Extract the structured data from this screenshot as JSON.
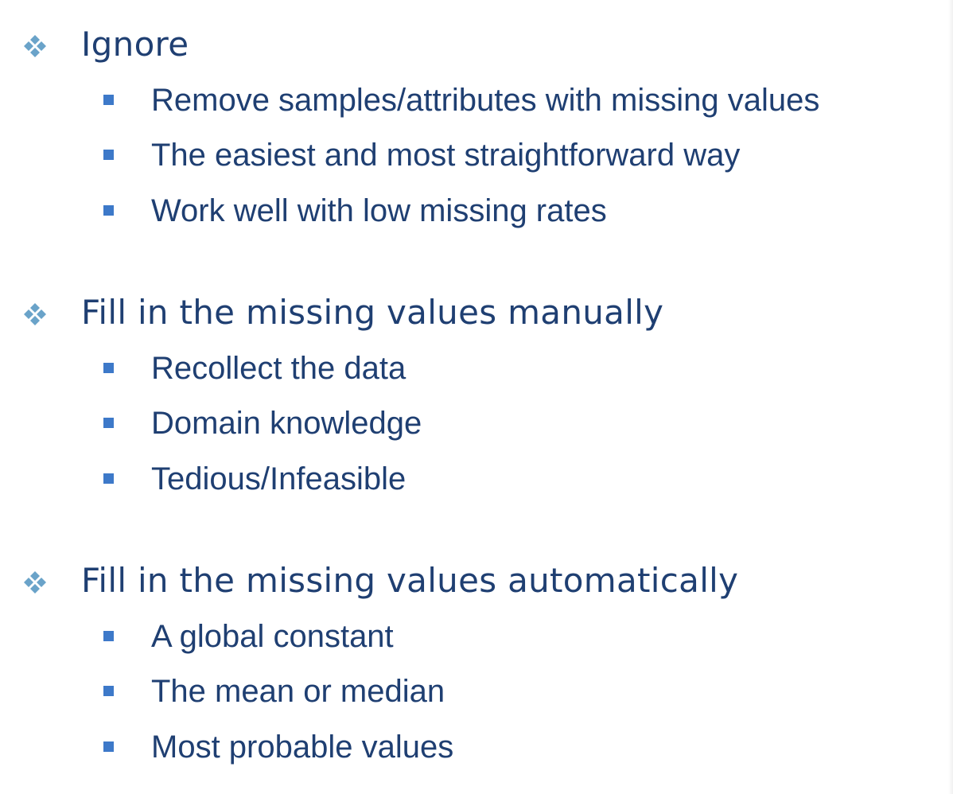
{
  "sections": [
    {
      "heading": "Ignore",
      "items": [
        "Remove samples/attributes with missing values",
        "The easiest and most straightforward way",
        "Work well with low missing rates"
      ]
    },
    {
      "heading": "Fill in the missing values manually",
      "items": [
        "Recollect the data",
        "Domain knowledge",
        "Tedious/Infeasible"
      ]
    },
    {
      "heading": "Fill in the missing values automatically",
      "items": [
        "A global constant",
        "The mean or median",
        "Most probable values"
      ]
    }
  ],
  "colors": {
    "text": "#1f3f72",
    "square_bullet": "#3d79c9",
    "diamond_bullet": "#6aa3c9"
  },
  "icons": {
    "top_level_bullet": "four-diamond-bullet-icon",
    "sub_bullet": "square-bullet-icon"
  }
}
